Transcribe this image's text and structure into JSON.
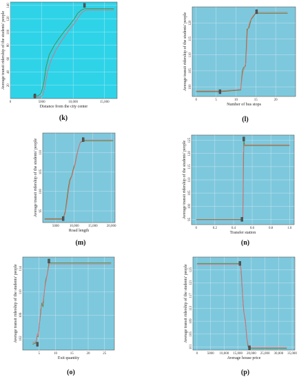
{
  "chart_data": [
    {
      "label": "(k)",
      "type": "line",
      "bg": "#2fd3e8",
      "xlabel": "Distance from the city center",
      "ylabel": "Average transit ridership of the students' people",
      "xlim": [
        0,
        17000
      ],
      "ylim": [
        0,
        145
      ],
      "xticks": [
        0,
        5000,
        10000,
        15000
      ],
      "xtick_labels": [
        "0",
        "5000",
        "10,000",
        "15,000"
      ],
      "yticks": [
        20,
        40,
        60,
        80,
        100,
        120,
        140
      ],
      "series": [
        {
          "color": "#4e8a3a",
          "x": [
            3600,
            4400,
            4900,
            5300,
            5700,
            6200,
            7000,
            7800,
            8600,
            9400,
            10200,
            10700,
            11300,
            11800,
            12400,
            16500
          ],
          "y": [
            4,
            4,
            8,
            22,
            48,
            66,
            80,
            91,
            101,
            110,
            120,
            128,
            133,
            135,
            135,
            135
          ]
        },
        {
          "color": "#e86b7a",
          "x": [
            3600,
            4800,
            5200,
            5500,
            5900,
            6500,
            7300,
            8100,
            8900,
            9700,
            10500,
            11100,
            11600,
            12200,
            16500
          ],
          "y": [
            2,
            2,
            6,
            18,
            40,
            58,
            74,
            86,
            97,
            107,
            117,
            126,
            131,
            133,
            133
          ]
        }
      ],
      "markers": [
        {
          "x": 3900,
          "y": 4
        },
        {
          "x": 11800,
          "y": 140
        }
      ]
    },
    {
      "label": "(l)",
      "type": "line",
      "bg": "#7ec8dd",
      "xlabel": "Number of bus stops",
      "ylabel": "Average transit ridership of the students' people",
      "xlim": [
        -1,
        25
      ],
      "ylim": [
        97,
        125
      ],
      "xticks": [
        0,
        5,
        10,
        15,
        20
      ],
      "xtick_labels": [
        "0",
        "5",
        "10",
        "15",
        "20"
      ],
      "yticks": [
        100,
        105,
        110,
        115,
        120
      ],
      "series": [
        {
          "color": "#4e8a3a",
          "x": [
            0,
            6,
            11.2,
            11.6,
            11.9,
            12.4,
            12.8,
            13.3,
            13.8,
            14.4,
            15,
            23
          ],
          "y": [
            98.5,
            98.5,
            99,
            105,
            106,
            106.5,
            118,
            118.5,
            121,
            122,
            123,
            123
          ]
        },
        {
          "color": "#e86b7a",
          "x": [
            0,
            6,
            11.2,
            11.7,
            12,
            12.5,
            12.9,
            13.4,
            13.9,
            14.5,
            15.1,
            23
          ],
          "y": [
            98.7,
            98.7,
            99.2,
            104.5,
            105.5,
            107.5,
            117.5,
            120,
            121.5,
            122.5,
            123.3,
            123.3
          ]
        }
      ],
      "markers": [
        {
          "x": 6,
          "y": 98.5
        },
        {
          "x": 15.2,
          "y": 123.5
        }
      ]
    },
    {
      "label": "(m)",
      "type": "line",
      "bg": "#7ec8dd",
      "xlabel": "Road length",
      "ylabel": "Average transit ridership of the students' people",
      "xlim": [
        1500,
        21000
      ],
      "ylim": [
        92,
        115
      ],
      "xticks": [
        5000,
        10000,
        15000,
        20000
      ],
      "xtick_labels": [
        "5000",
        "10,000",
        "15,000",
        "20,000"
      ],
      "yticks": [
        95,
        100,
        105,
        110
      ],
      "series": [
        {
          "color": "#4e8a3a",
          "x": [
            2000,
            7000,
            7600,
            8000,
            8400,
            8800,
            9300,
            9800,
            10200,
            10600,
            11100,
            11600,
            12300,
            20500
          ],
          "y": [
            93,
            93,
            95,
            98,
            101,
            103,
            104,
            106,
            107,
            109,
            111,
            112.5,
            113,
            113
          ]
        },
        {
          "color": "#e86b7a",
          "x": [
            2000,
            7000,
            7600,
            8100,
            8500,
            8900,
            9400,
            9900,
            10300,
            10700,
            11200,
            11700,
            12400,
            20500
          ],
          "y": [
            92.8,
            92.8,
            94.5,
            97.5,
            100.5,
            102.8,
            104,
            105.8,
            107.2,
            109.2,
            111.3,
            112.7,
            113.2,
            113.2
          ]
        }
      ],
      "markers": [
        {
          "x": 7000,
          "y": 93
        },
        {
          "x": 12400,
          "y": 113.3
        }
      ]
    },
    {
      "label": "(n)",
      "type": "line",
      "bg": "#7ec8dd",
      "xlabel": "Transfer station",
      "ylabel": "Average transit ridership of the students' people",
      "xlim": [
        -0.05,
        1.05
      ],
      "ylim": [
        93,
        127
      ],
      "xticks": [
        0,
        0.2,
        0.4,
        0.6,
        0.8,
        1.0
      ],
      "xtick_labels": [
        "0",
        "0.2",
        "0.4",
        "0.6",
        "0.8",
        "1.0"
      ],
      "yticks": [
        95,
        100,
        105,
        110,
        115,
        120,
        125
      ],
      "series": [
        {
          "color": "#4e8a3a",
          "x": [
            0,
            0.49,
            0.5,
            0.51,
            0.52,
            1.0
          ],
          "y": [
            95,
            95,
            96,
            125,
            123,
            123
          ]
        },
        {
          "color": "#e86b7a",
          "x": [
            0,
            0.49,
            0.5,
            0.505,
            0.515,
            1.0
          ],
          "y": [
            94.8,
            94.8,
            95.5,
            120,
            123.3,
            123.3
          ]
        }
      ],
      "markers": [
        {
          "x": 0.49,
          "y": 95
        },
        {
          "x": 0.51,
          "y": 125.5
        }
      ]
    },
    {
      "label": "(o)",
      "type": "line",
      "bg": "#7ec8dd",
      "xlabel": "Exit quantity",
      "ylabel": "Average transit ridership of the students' people",
      "xlim": [
        0,
        28
      ],
      "ylim": [
        100,
        116
      ],
      "xticks": [
        5,
        10,
        15,
        20,
        25
      ],
      "xtick_labels": [
        "5",
        "10",
        "15",
        "20",
        "25"
      ],
      "yticks": [
        102,
        106,
        110,
        114
      ],
      "series": [
        {
          "color": "#4e8a3a",
          "x": [
            3,
            4,
            4.4,
            4.7,
            5,
            5.4,
            5.8,
            6.2,
            6.6,
            7,
            7.5,
            8,
            27
          ],
          "y": [
            101,
            101.2,
            102.4,
            102.3,
            104,
            106,
            108,
            107.5,
            110,
            112,
            113,
            115,
            115
          ]
        },
        {
          "color": "#e86b7a",
          "x": [
            3,
            4,
            4.5,
            4.8,
            5.1,
            5.5,
            5.9,
            6.3,
            6.7,
            7.1,
            7.6,
            8.1,
            27
          ],
          "y": [
            101.3,
            101.4,
            102.8,
            102.6,
            104.5,
            107,
            107.8,
            108.5,
            110.5,
            111.8,
            113.3,
            114.8,
            114.8
          ]
        }
      ],
      "markers": [
        {
          "x": 4.5,
          "y": 101
        },
        {
          "x": 8,
          "y": 115.3
        }
      ]
    },
    {
      "label": "(p)",
      "type": "line",
      "bg": "#7ec8dd",
      "xlabel": "Average house price",
      "ylabel": "Average transit ridership of the students' people",
      "xlim": [
        -1500,
        36000
      ],
      "ylim": [
        100,
        129
      ],
      "xticks": [
        0,
        5000,
        10000,
        15000,
        20000,
        25000,
        30000,
        35000
      ],
      "xtick_labels": [
        "0",
        "5000",
        "10,000",
        "15,000",
        "20,000",
        "25,000",
        "30,000",
        "35,000"
      ],
      "yticks": [
        101,
        105,
        109,
        113,
        117,
        121,
        125
      ],
      "series": [
        {
          "color": "#4e8a3a",
          "x": [
            0,
            15800,
            16200,
            16700,
            17200,
            17800,
            18300,
            18800,
            19300,
            33000
          ],
          "y": [
            127,
            127,
            125,
            118,
            112,
            109,
            104,
            101,
            100.5,
            100.5
          ]
        },
        {
          "color": "#e86b7a",
          "x": [
            0,
            15900,
            16300,
            16800,
            17300,
            17900,
            18400,
            18900,
            19400,
            33000
          ],
          "y": [
            126.7,
            126.7,
            124.5,
            117,
            111.5,
            108,
            103.5,
            101.2,
            100.8,
            100.8
          ]
        }
      ],
      "markers": [
        {
          "x": 15800,
          "y": 127
        },
        {
          "x": 19300,
          "y": 100.7
        }
      ]
    }
  ]
}
